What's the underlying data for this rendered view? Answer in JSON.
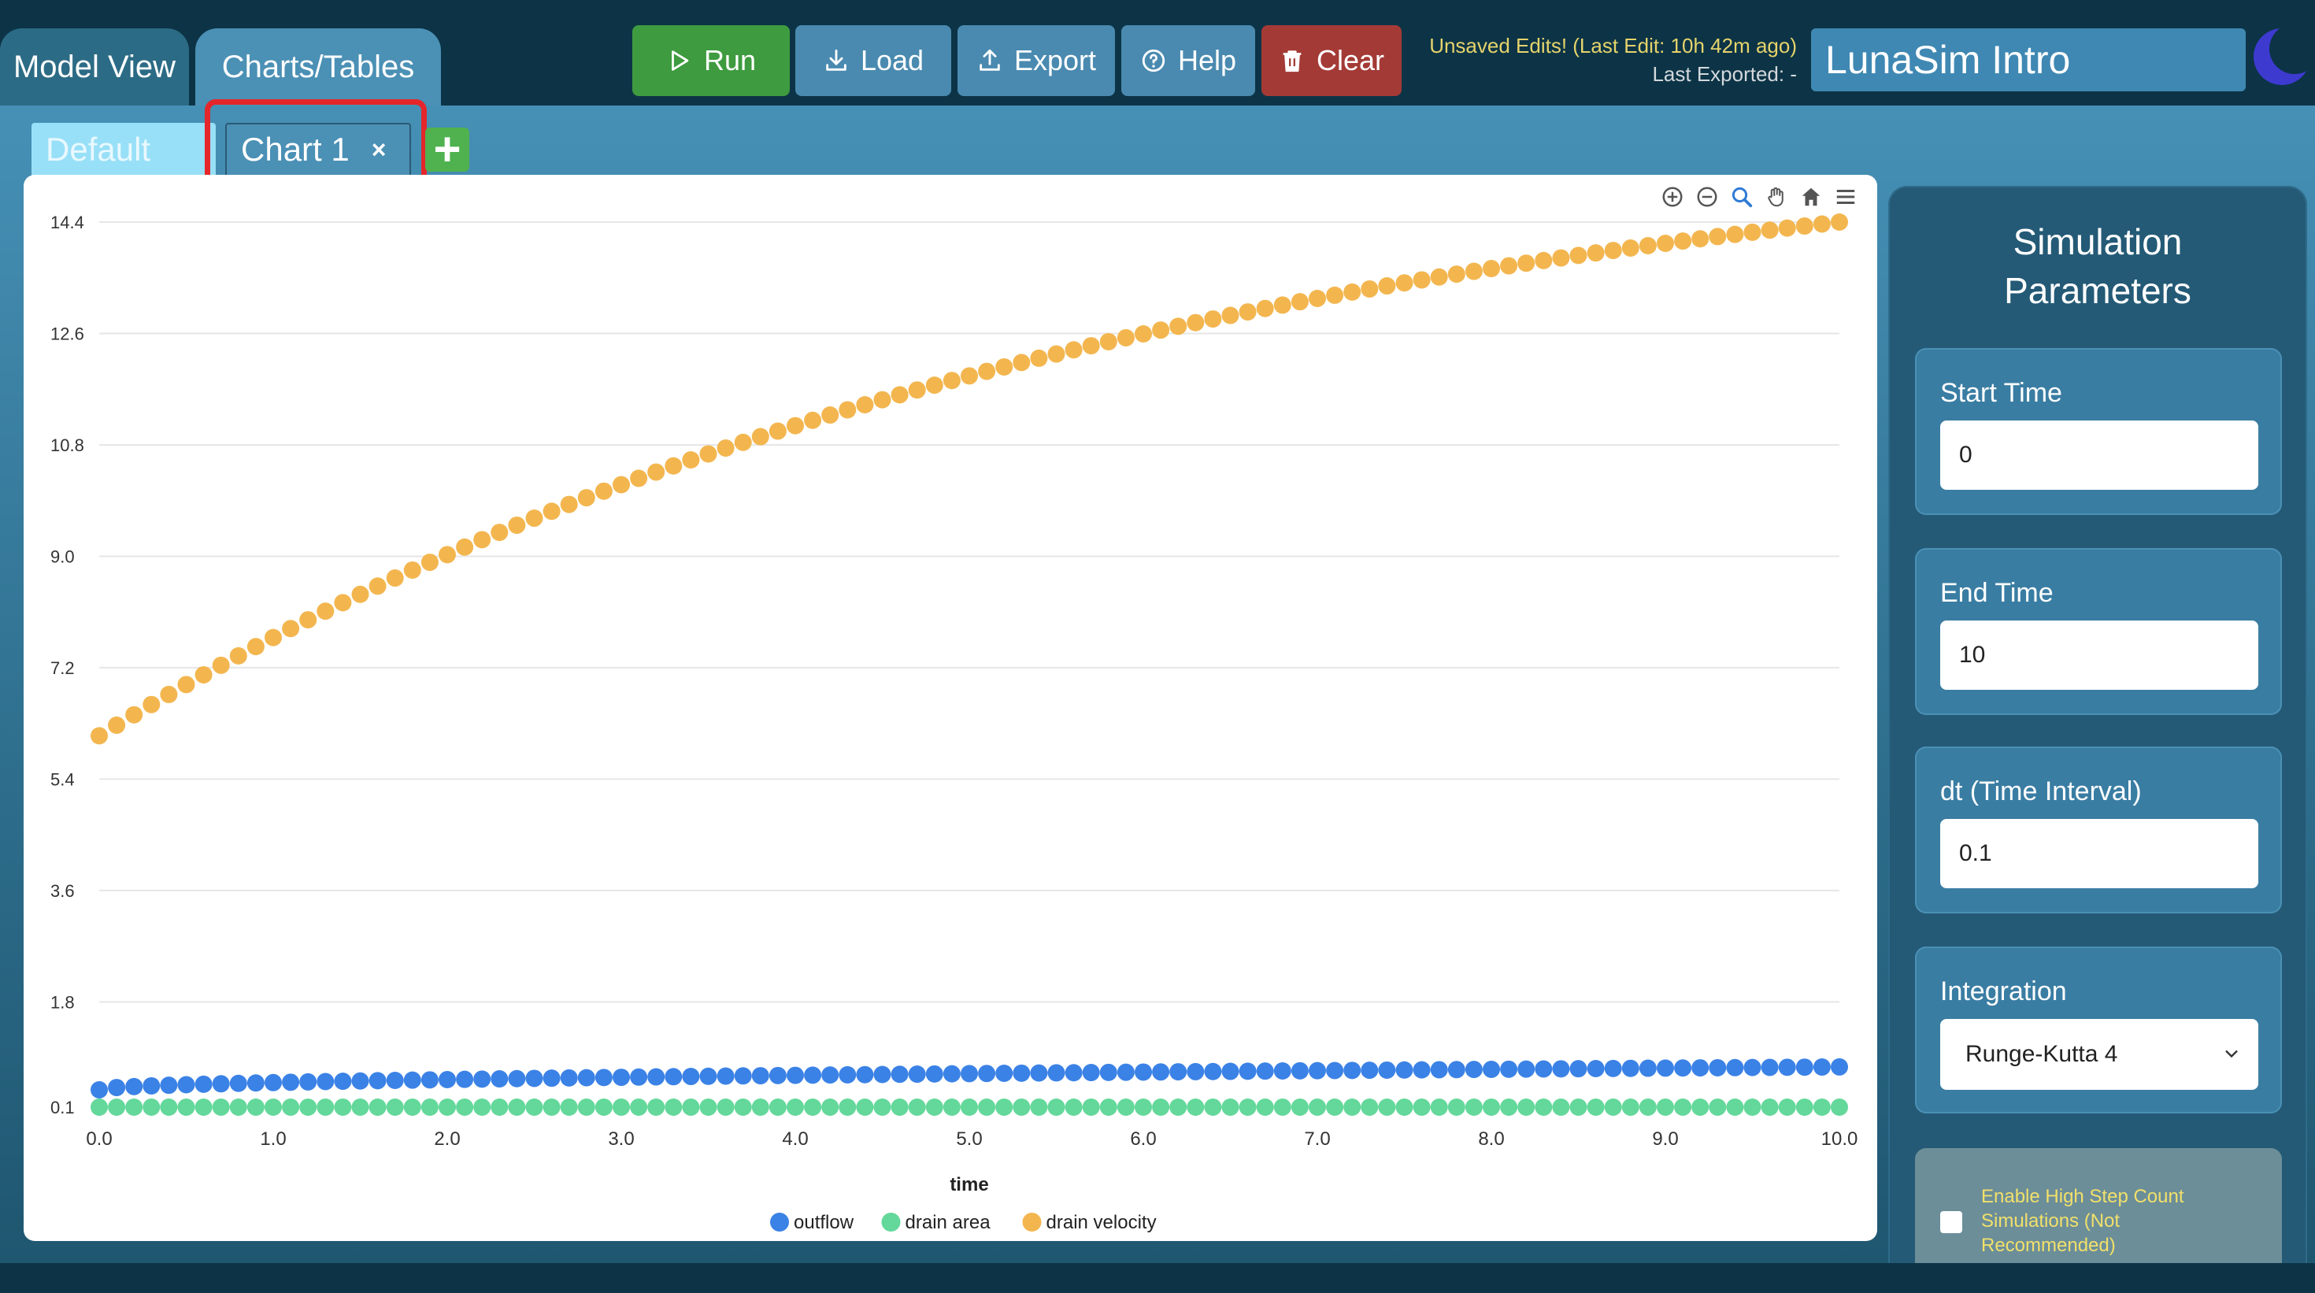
{
  "main_tabs": [
    {
      "label": "Model View"
    },
    {
      "label": "Charts/Tables"
    }
  ],
  "toolbar": {
    "run_label": "Run",
    "load_label": "Load",
    "export_label": "Export",
    "help_label": "Help",
    "clear_label": "Clear"
  },
  "status": {
    "unsaved": "Unsaved Edits! (Last Edit: 10h 42m ago)",
    "last_exported": "Last Exported: -"
  },
  "model_title": "LunaSim Intro",
  "chart_tabs": {
    "default_label": "Default",
    "chart1_label": "Chart 1",
    "close_glyph": "×",
    "add_glyph": "+"
  },
  "sidebar": {
    "title_line1": "Simulation",
    "title_line2": "Parameters",
    "start_time_label": "Start Time",
    "start_time_value": "0",
    "end_time_label": "End Time",
    "end_time_value": "10",
    "dt_label": "dt (Time Interval)",
    "dt_value": "0.1",
    "integration_label": "Integration",
    "integration_value": "Runge-Kutta 4",
    "high_step_label": "Enable High Step Count Simulations (Not Recommended)"
  },
  "colors": {
    "outflow": "#3b82e6",
    "drain_area": "#63d89a",
    "drain_velocity": "#f3b64f"
  },
  "chart_data": {
    "type": "scatter",
    "xlabel": "time",
    "ylabel": "",
    "xlim": [
      0,
      10
    ],
    "ylim": [
      0.1,
      14.4
    ],
    "x_ticks": [
      "0.0",
      "1.0",
      "2.0",
      "3.0",
      "4.0",
      "5.0",
      "6.0",
      "7.0",
      "8.0",
      "9.0",
      "10.0"
    ],
    "y_ticks": [
      "0.1",
      "1.8",
      "3.6",
      "5.4",
      "7.2",
      "9.0",
      "10.8",
      "12.6",
      "14.4"
    ],
    "x": {
      "start": 0,
      "end": 10,
      "step": 0.1
    },
    "series": [
      {
        "name": "outflow",
        "y_start": 0.38,
        "y_end": 0.75
      },
      {
        "name": "drain area",
        "y_start": 0.1,
        "y_end": 0.1
      },
      {
        "name": "drain velocity",
        "y_start": 6.1,
        "y_end": 14.4
      }
    ],
    "grid": true,
    "legend_position": "bottom"
  }
}
